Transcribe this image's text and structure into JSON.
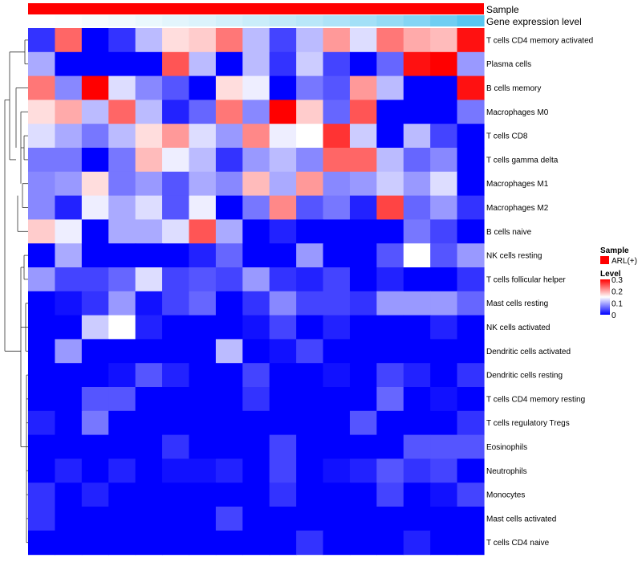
{
  "chart_data": {
    "type": "heatmap",
    "title": "",
    "annotations": [
      {
        "name": "Sample",
        "kind": "categorical",
        "color": "#ff0000"
      },
      {
        "name": "Gene expression level",
        "kind": "gradient",
        "color_low": "#ffffff",
        "color_high": "#4fc3ef"
      }
    ],
    "rows": [
      "T cells CD4 memory activated",
      "Plasma cells",
      "B cells memory",
      "Macrophages M0",
      "T cells CD8",
      "T cells gamma delta",
      "Macrophages M1",
      "Macrophages M2",
      "B cells naive",
      "NK cells resting",
      "T cells follicular helper",
      "Mast cells resting",
      "NK cells activated",
      "Dendritic cells activated",
      "Dendritic cells resting",
      "T cells CD4 memory resting",
      "T cells regulatory  Tregs",
      "Eosinophils",
      "Neutrophils",
      "Monocytes",
      "Mast cells activated",
      "T cells CD4 naive"
    ],
    "n_columns": 17,
    "scale": {
      "min": 0,
      "max": 0.3,
      "colors": [
        "#0000ff",
        "#ffffff",
        "#ff0000"
      ]
    },
    "values": [
      [
        0.03,
        0.24,
        0.0,
        0.03,
        0.11,
        0.17,
        0.18,
        0.23,
        0.11,
        0.04,
        0.11,
        0.21,
        0.13,
        0.23,
        0.2,
        0.19,
        0.29
      ],
      [
        0.1,
        0.0,
        0.0,
        0.0,
        0.0,
        0.25,
        0.11,
        0.0,
        0.11,
        0.03,
        0.12,
        0.04,
        0.0,
        0.06,
        0.29,
        0.3,
        0.09
      ],
      [
        0.23,
        0.08,
        0.3,
        0.13,
        0.08,
        0.05,
        0.0,
        0.17,
        0.14,
        0.0,
        0.07,
        0.05,
        0.21,
        0.11,
        0.0,
        0.0,
        0.29
      ],
      [
        0.17,
        0.2,
        0.11,
        0.24,
        0.11,
        0.02,
        0.06,
        0.23,
        0.08,
        0.3,
        0.18,
        0.06,
        0.25,
        0.0,
        0.0,
        0.0,
        0.07
      ],
      [
        0.13,
        0.1,
        0.07,
        0.11,
        0.17,
        0.21,
        0.13,
        0.09,
        0.22,
        0.14,
        0.15,
        0.27,
        0.12,
        0.0,
        0.11,
        0.04,
        0.0
      ],
      [
        0.07,
        0.07,
        0.0,
        0.07,
        0.19,
        0.14,
        0.11,
        0.03,
        0.09,
        0.11,
        0.08,
        0.24,
        0.24,
        0.11,
        0.06,
        0.08,
        0.0
      ],
      [
        0.08,
        0.09,
        0.17,
        0.07,
        0.09,
        0.05,
        0.1,
        0.08,
        0.19,
        0.1,
        0.21,
        0.08,
        0.09,
        0.12,
        0.09,
        0.13,
        0.0
      ],
      [
        0.08,
        0.02,
        0.14,
        0.1,
        0.13,
        0.05,
        0.14,
        0.0,
        0.07,
        0.22,
        0.05,
        0.07,
        0.02,
        0.26,
        0.06,
        0.09,
        0.03
      ],
      [
        0.18,
        0.14,
        0.0,
        0.1,
        0.1,
        0.13,
        0.25,
        0.1,
        0.0,
        0.02,
        0.0,
        0.0,
        0.0,
        0.0,
        0.07,
        0.04,
        0.0
      ],
      [
        0.0,
        0.1,
        0.0,
        0.0,
        0.0,
        0.0,
        0.02,
        0.06,
        0.0,
        0.0,
        0.09,
        0.0,
        0.0,
        0.05,
        0.15,
        0.05,
        0.09
      ],
      [
        0.09,
        0.04,
        0.04,
        0.06,
        0.13,
        0.04,
        0.05,
        0.04,
        0.09,
        0.03,
        0.02,
        0.04,
        0.0,
        0.02,
        0.0,
        0.0,
        0.03
      ],
      [
        0.0,
        0.01,
        0.03,
        0.09,
        0.01,
        0.04,
        0.06,
        0.0,
        0.03,
        0.08,
        0.04,
        0.04,
        0.03,
        0.09,
        0.09,
        0.09,
        0.06
      ],
      [
        0.0,
        0.0,
        0.12,
        0.15,
        0.02,
        0.0,
        0.0,
        0.0,
        0.01,
        0.04,
        0.0,
        0.02,
        0.0,
        0.0,
        0.0,
        0.02,
        0.0
      ],
      [
        0.0,
        0.09,
        0.0,
        0.0,
        0.0,
        0.0,
        0.0,
        0.11,
        0.0,
        0.01,
        0.04,
        0.0,
        0.0,
        0.0,
        0.0,
        0.0,
        0.0
      ],
      [
        0.0,
        0.0,
        0.0,
        0.01,
        0.05,
        0.02,
        0.0,
        0.0,
        0.04,
        0.0,
        0.0,
        0.01,
        0.0,
        0.04,
        0.02,
        0.0,
        0.03
      ],
      [
        0.0,
        0.0,
        0.05,
        0.05,
        0.0,
        0.0,
        0.0,
        0.0,
        0.03,
        0.0,
        0.0,
        0.0,
        0.0,
        0.06,
        0.0,
        0.01,
        0.0
      ],
      [
        0.02,
        0.0,
        0.07,
        0.0,
        0.0,
        0.0,
        0.0,
        0.0,
        0.0,
        0.0,
        0.0,
        0.0,
        0.05,
        0.0,
        0.0,
        0.0,
        0.03
      ],
      [
        0.0,
        0.0,
        0.0,
        0.0,
        0.0,
        0.03,
        0.0,
        0.0,
        0.0,
        0.04,
        0.0,
        0.0,
        0.0,
        0.0,
        0.05,
        0.05,
        0.05
      ],
      [
        0.0,
        0.02,
        0.0,
        0.02,
        0.0,
        0.01,
        0.01,
        0.02,
        0.0,
        0.04,
        0.0,
        0.01,
        0.02,
        0.05,
        0.03,
        0.04,
        0.0
      ],
      [
        0.03,
        0.0,
        0.02,
        0.0,
        0.0,
        0.0,
        0.0,
        0.0,
        0.0,
        0.03,
        0.0,
        0.0,
        0.0,
        0.04,
        0.0,
        0.01,
        0.04
      ],
      [
        0.03,
        0.0,
        0.0,
        0.0,
        0.0,
        0.0,
        0.0,
        0.04,
        0.0,
        0.0,
        0.0,
        0.0,
        0.0,
        0.0,
        0.0,
        0.0,
        0.0
      ],
      [
        0.0,
        0.0,
        0.0,
        0.0,
        0.0,
        0.0,
        0.0,
        0.0,
        0.0,
        0.0,
        0.03,
        0.0,
        0.0,
        0.0,
        0.02,
        0.0,
        0.0
      ]
    ],
    "gene_expression_level": [
      0.0,
      0.02,
      0.05,
      0.08,
      0.12,
      0.16,
      0.2,
      0.25,
      0.3,
      0.35,
      0.4,
      0.46,
      0.52,
      0.6,
      0.7,
      0.82,
      0.95
    ],
    "legends": {
      "sample": {
        "title": "Sample",
        "entries": [
          {
            "label": "ARL(+)",
            "color": "#ff0000"
          }
        ]
      },
      "level": {
        "title": "Level",
        "ticks": [
          "0.3",
          "0.2",
          "0.1",
          "0"
        ],
        "tick_values": [
          0.3,
          0.2,
          0.1,
          0
        ]
      }
    },
    "dendrogram": "row clustering tree on left"
  }
}
